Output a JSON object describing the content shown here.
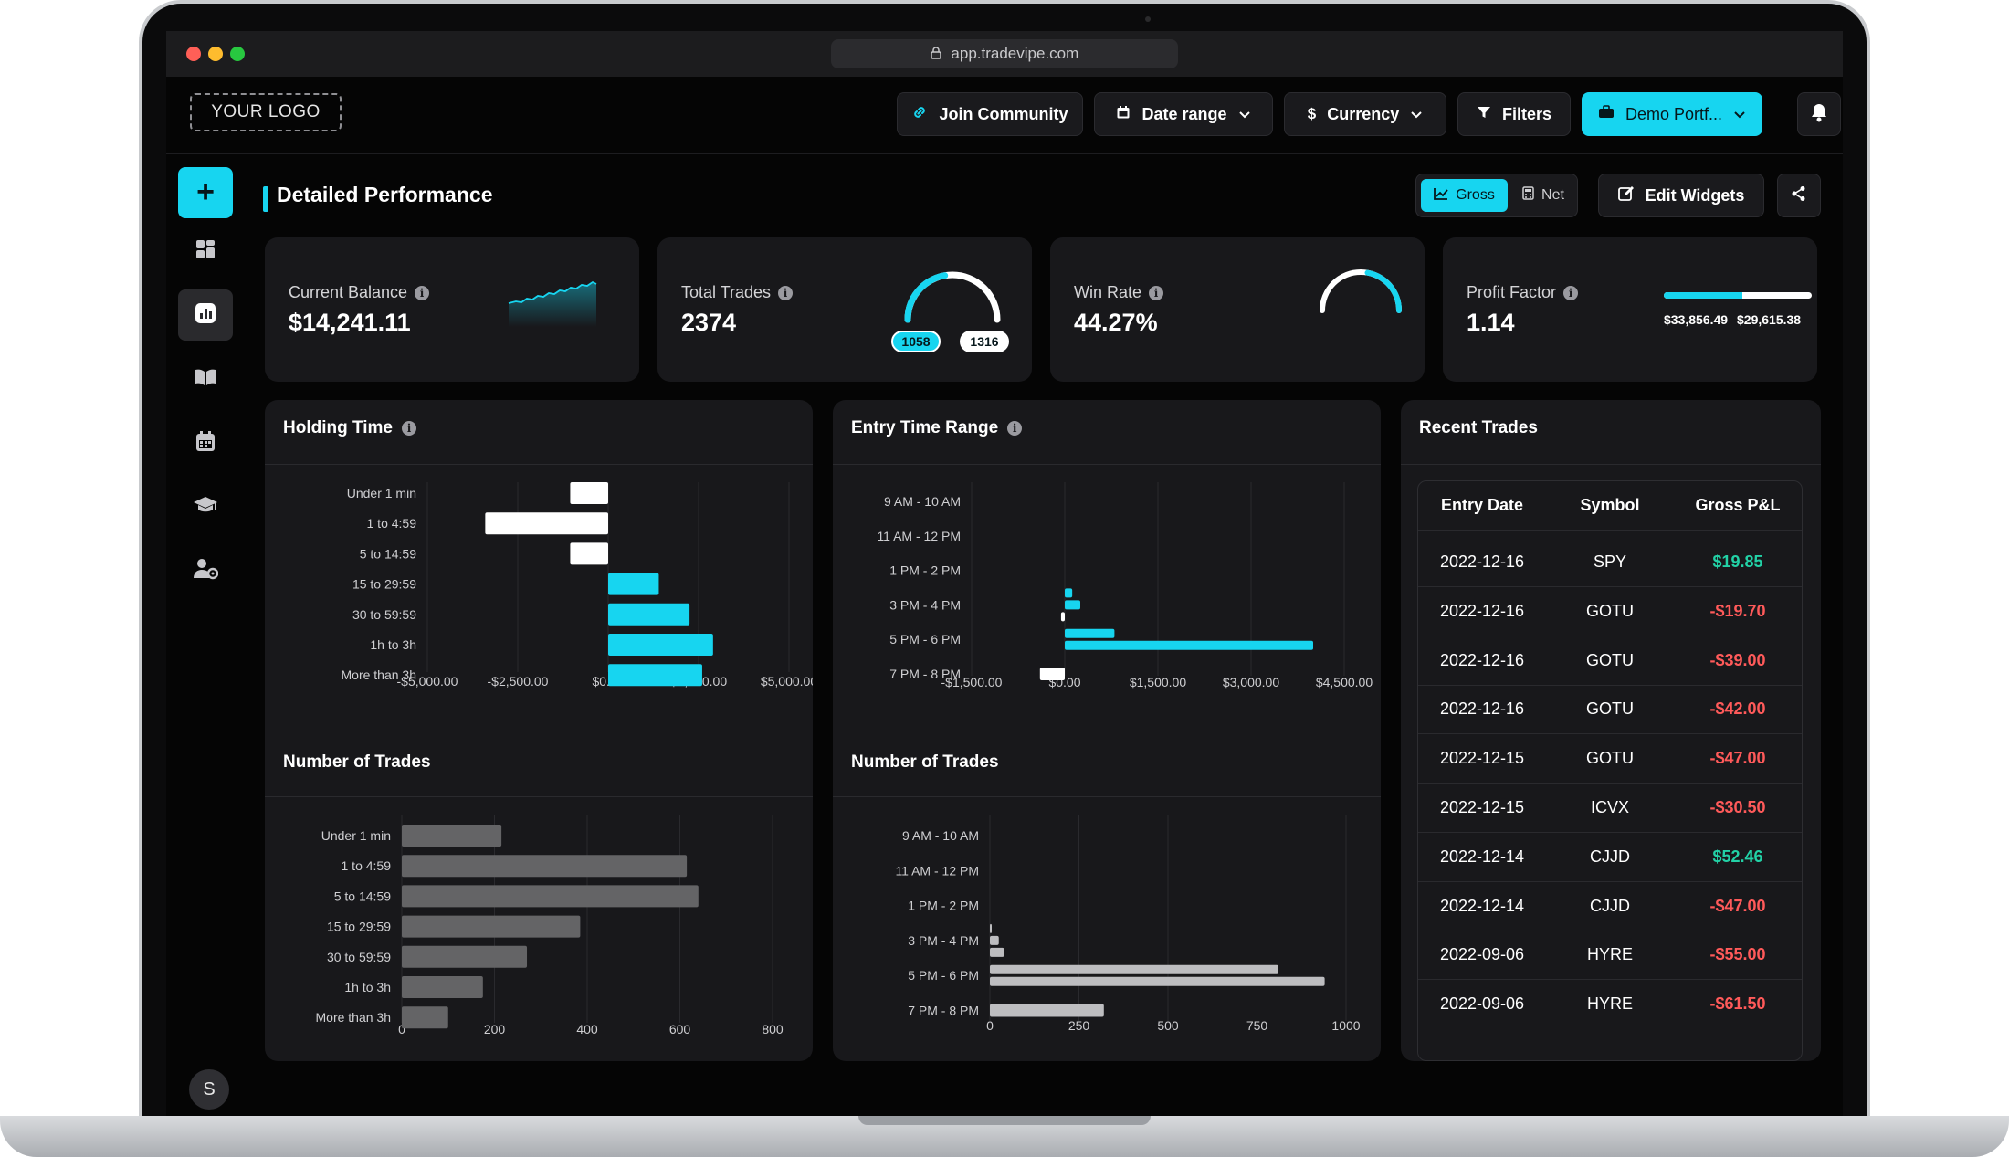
{
  "browser": {
    "url": "app.tradevipe.com"
  },
  "header": {
    "logo": "YOUR LOGO",
    "join": "Join Community",
    "date": "Date range",
    "currency": "Currency",
    "filters": "Filters",
    "portfolio": "Demo Portf...",
    "icons": [
      "link-icon",
      "calendar-icon",
      "dollar-icon",
      "funnel-icon",
      "briefcase-icon",
      "bell-icon"
    ]
  },
  "sidebar": {
    "avatar": "S",
    "icons": [
      "plus-icon",
      "dashboard-icon",
      "reports-icon",
      "journal-icon",
      "calendar-icon",
      "education-icon",
      "user-settings-icon"
    ]
  },
  "page": {
    "title": "Detailed Performance",
    "gross": "Gross",
    "net": "Net",
    "edit": "Edit Widgets"
  },
  "kpis": {
    "balance": {
      "label": "Current Balance",
      "value": "$14,241.11"
    },
    "trades": {
      "label": "Total Trades",
      "value": "2374",
      "win": "1058",
      "loss": "1316"
    },
    "winrate": {
      "label": "Win Rate",
      "value": "44.27%",
      "fraction": 0.4427
    },
    "profit": {
      "label": "Profit Factor",
      "value": "1.14",
      "gross_profit": "$33,856.49",
      "gross_loss": "$29,615.38"
    }
  },
  "colors": {
    "accent": "#17d5f0",
    "positive": "#22d1a6",
    "negative": "#ff5a5a",
    "card": "#18181b"
  },
  "panels": {
    "holding": "Holding Time",
    "entry": "Entry Time Range",
    "numtrades_left": "Number of Trades",
    "numtrades_mid": "Number of Trades",
    "recent": "Recent Trades"
  },
  "chart_data": [
    {
      "type": "bar",
      "orientation": "horizontal",
      "title": "Holding Time",
      "categories": [
        "Under 1 min",
        "1 to 4:59",
        "5 to 14:59",
        "15 to 29:59",
        "30 to 59:59",
        "1h to 3h",
        "More than 3h"
      ],
      "values": [
        -1050,
        -3400,
        -1050,
        1400,
        2250,
        2900,
        2600
      ],
      "xlim": [
        -5000,
        5000
      ],
      "ticks": [
        "-$5,000.00",
        "-$2,500.00",
        "$0.00",
        "$2,500.00",
        "$5,000.00"
      ],
      "tick_values": [
        -5000,
        -2500,
        0,
        2500,
        5000
      ]
    },
    {
      "type": "bar",
      "orientation": "horizontal",
      "title": "Entry Time Range",
      "categories": [
        "9 AM - 10 AM",
        "11 AM - 12 PM",
        "1 PM - 2 PM",
        "3 PM - 4 PM",
        "5 PM - 6 PM",
        "7 PM - 8 PM"
      ],
      "rows": [
        {
          "cat": "9 AM - 10 AM",
          "values": []
        },
        {
          "cat": "11 AM - 12 PM",
          "values": []
        },
        {
          "cat": "1 PM - 2 PM",
          "values": []
        },
        {
          "cat": "3 PM - 4 PM",
          "values": [
            120,
            250,
            -60
          ]
        },
        {
          "cat": "5 PM - 6 PM",
          "values": [
            800,
            4000
          ]
        },
        {
          "cat": "7 PM - 8 PM",
          "values": [
            -400
          ]
        }
      ],
      "xlim": [
        -1500,
        4500
      ],
      "ticks": [
        "-$1,500.00",
        "$0.00",
        "$1,500.00",
        "$3,000.00",
        "$4,500.00"
      ],
      "tick_values": [
        -1500,
        0,
        1500,
        3000,
        4500
      ]
    },
    {
      "type": "bar",
      "orientation": "horizontal",
      "title": "Number of Trades",
      "categories": [
        "Under 1 min",
        "1 to 4:59",
        "5 to 14:59",
        "15 to 29:59",
        "30 to 59:59",
        "1h to 3h",
        "More than 3h"
      ],
      "values": [
        215,
        615,
        640,
        385,
        270,
        175,
        100
      ],
      "xlim": [
        0,
        800
      ],
      "ticks": [
        "0",
        "200",
        "400",
        "600",
        "800"
      ],
      "tick_values": [
        0,
        200,
        400,
        600,
        800
      ]
    },
    {
      "type": "bar",
      "orientation": "horizontal",
      "title": "Number of Trades",
      "categories": [
        "9 AM - 10 AM",
        "11 AM - 12 PM",
        "1 PM - 2 PM",
        "3 PM - 4 PM",
        "5 PM - 6 PM",
        "7 PM - 8 PM"
      ],
      "rows": [
        {
          "cat": "9 AM - 10 AM",
          "values": []
        },
        {
          "cat": "11 AM - 12 PM",
          "values": []
        },
        {
          "cat": "1 PM - 2 PM",
          "values": []
        },
        {
          "cat": "3 PM - 4 PM",
          "values": [
            5,
            25,
            40
          ]
        },
        {
          "cat": "5 PM - 6 PM",
          "values": [
            810,
            940
          ]
        },
        {
          "cat": "7 PM - 8 PM",
          "values": [
            320
          ]
        }
      ],
      "xlim": [
        0,
        1000
      ],
      "ticks": [
        "0",
        "250",
        "500",
        "750",
        "1000"
      ],
      "tick_values": [
        0,
        250,
        500,
        750,
        1000
      ]
    }
  ],
  "recent_trades": {
    "headers": [
      "Entry Date",
      "Symbol",
      "Gross P&L"
    ],
    "rows": [
      {
        "date": "2022-12-16",
        "symbol": "SPY",
        "pnl": "$19.85",
        "sign": "pos"
      },
      {
        "date": "2022-12-16",
        "symbol": "GOTU",
        "pnl": "-$19.70",
        "sign": "neg"
      },
      {
        "date": "2022-12-16",
        "symbol": "GOTU",
        "pnl": "-$39.00",
        "sign": "neg"
      },
      {
        "date": "2022-12-16",
        "symbol": "GOTU",
        "pnl": "-$42.00",
        "sign": "neg"
      },
      {
        "date": "2022-12-15",
        "symbol": "GOTU",
        "pnl": "-$47.00",
        "sign": "neg"
      },
      {
        "date": "2022-12-15",
        "symbol": "ICVX",
        "pnl": "-$30.50",
        "sign": "neg"
      },
      {
        "date": "2022-12-14",
        "symbol": "CJJD",
        "pnl": "$52.46",
        "sign": "pos"
      },
      {
        "date": "2022-12-14",
        "symbol": "CJJD",
        "pnl": "-$47.00",
        "sign": "neg"
      },
      {
        "date": "2022-09-06",
        "symbol": "HYRE",
        "pnl": "-$55.00",
        "sign": "neg"
      },
      {
        "date": "2022-09-06",
        "symbol": "HYRE",
        "pnl": "-$61.50",
        "sign": "neg"
      }
    ]
  }
}
